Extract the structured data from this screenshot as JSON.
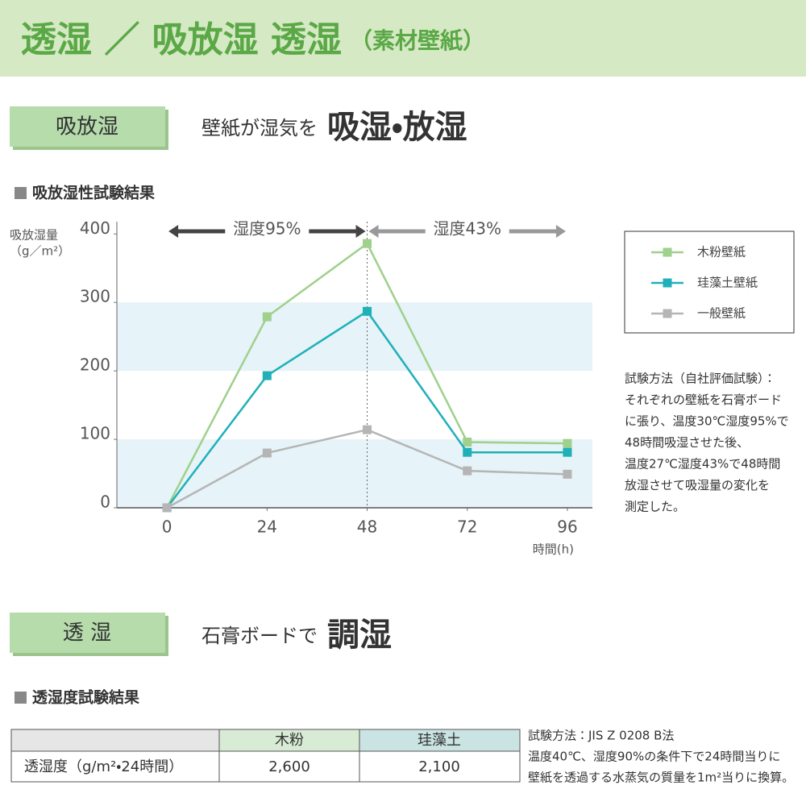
{
  "header": {
    "title": "透湿 ／ 吸放湿 透湿",
    "subtitle": "（素材壁紙）"
  },
  "section1": {
    "badge": "吸放湿",
    "lead": "壁紙が湿気を",
    "emphasis": "吸湿・放湿",
    "heading": "吸放湿性試験結果",
    "method_note": [
      "試験方法（自社評価試験）：",
      "それぞれの壁紙を石膏ボード",
      "に張り、温度30℃湿度95%で",
      "48時間吸湿させた後、",
      "温度27℃湿度43%で48時間",
      "放湿させて吸湿量の変化を",
      "測定した。"
    ]
  },
  "chart_data": {
    "type": "line",
    "y_label": [
      "吸放湿量",
      "（g／m²）"
    ],
    "x_label": "時間(h)",
    "x": [
      0,
      24,
      48,
      72,
      96
    ],
    "xlim": [
      -12,
      102
    ],
    "xticks": [
      0,
      24,
      48,
      72,
      96
    ],
    "ylim": [
      0,
      418
    ],
    "yticks": [
      0,
      100,
      200,
      300,
      400
    ],
    "band_color": "#e6f3f8",
    "series": [
      {
        "name": "木粉壁紙",
        "color": "#9fd08c",
        "values": [
          0,
          279,
          386,
          96,
          94
        ]
      },
      {
        "name": "珪藻土壁紙",
        "color": "#1fb0b8",
        "values": [
          0,
          193,
          287,
          81,
          81
        ]
      },
      {
        "name": "一般壁紙",
        "color": "#b5b5b5",
        "values": [
          0,
          80,
          114,
          54,
          49
        ]
      }
    ],
    "annotations": [
      {
        "text": "湿度95%",
        "span": [
          0,
          48
        ],
        "color": "#444444"
      },
      {
        "text": "湿度43%",
        "span": [
          48,
          96
        ],
        "color": "#999999"
      }
    ]
  },
  "section2": {
    "badge": "透 湿",
    "lead": "石膏ボードで",
    "emphasis": "調湿",
    "heading": "透湿度試験結果",
    "table": {
      "columns": [
        "木粉",
        "珪藻土"
      ],
      "rows": [
        [
          "透湿度（g/m²・24時間）",
          "2,600",
          "2,100"
        ]
      ]
    },
    "method_note": [
      "試験方法：JIS Z 0208 B法",
      "温度40℃、湿度90%の条件下で24時間当りに",
      "壁紙を透過する水蒸気の質量を1m²当りに換算。"
    ]
  }
}
